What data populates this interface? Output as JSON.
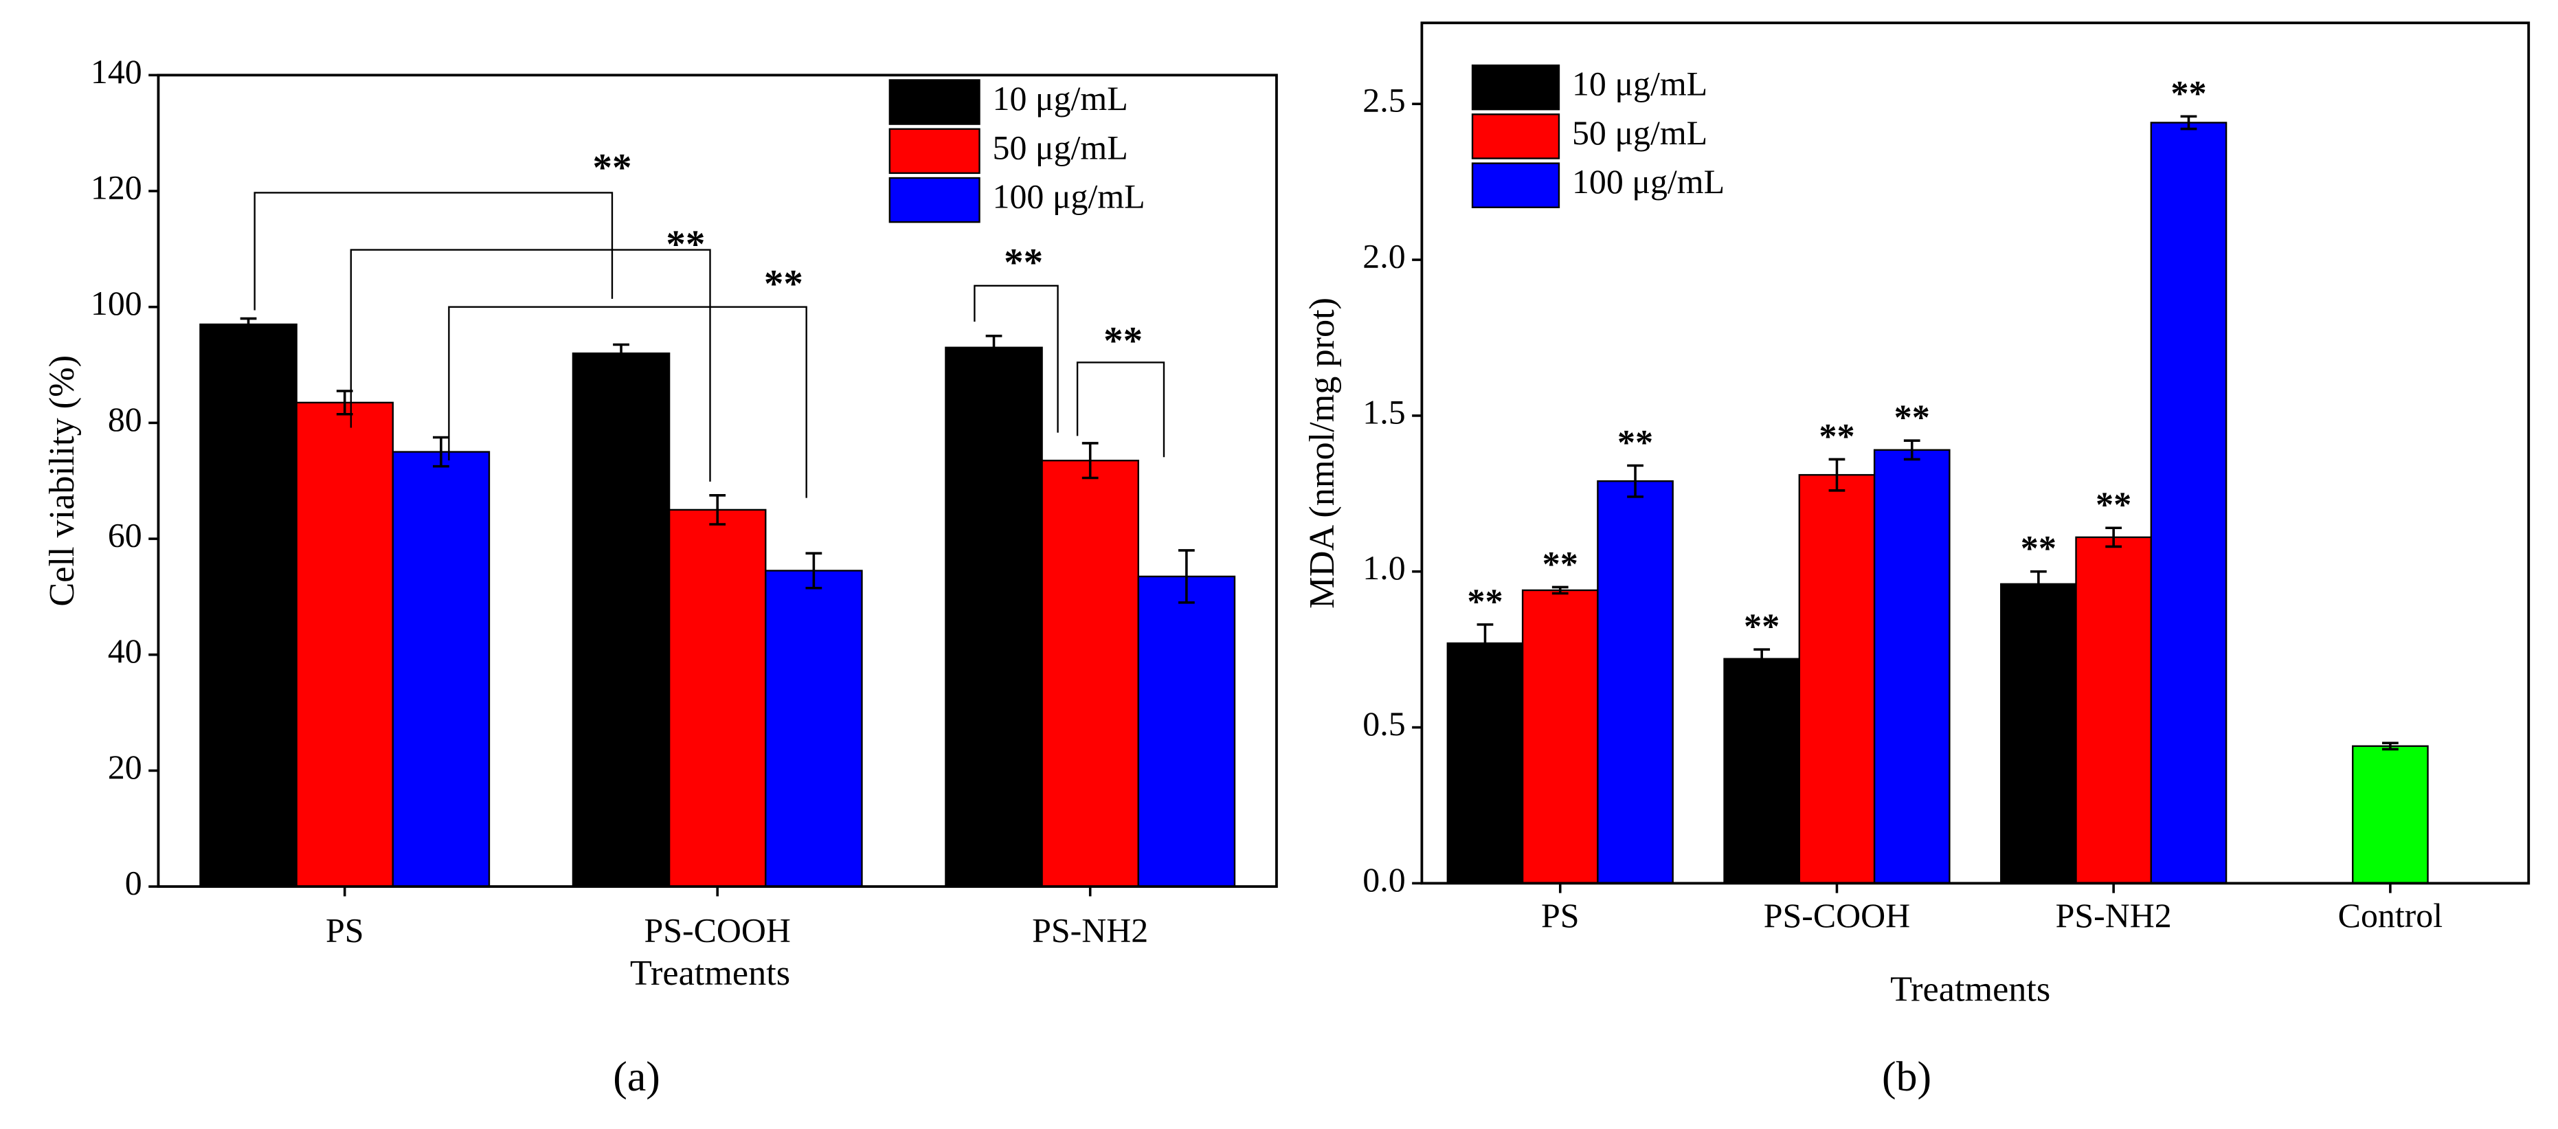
{
  "chart_data": [
    {
      "type": "bar",
      "panel_label": "(a)",
      "xlabel": "Treatments",
      "ylabel": "Cell viability (%)",
      "categories": [
        "PS",
        "PS-COOH",
        "PS-NH2"
      ],
      "series": [
        {
          "name": "10 μg/mL",
          "color": "#000000",
          "values": [
            97,
            92,
            93
          ],
          "errors": [
            1,
            1.5,
            2
          ]
        },
        {
          "name": "50 μg/mL",
          "color": "#ff0000",
          "values": [
            83.5,
            65,
            73.5
          ],
          "errors": [
            2,
            2.5,
            3
          ]
        },
        {
          "name": "100 μg/mL",
          "color": "#0000ff",
          "values": [
            75,
            54.5,
            53.5
          ],
          "errors": [
            2.5,
            3,
            4.5
          ]
        }
      ],
      "ylim": [
        0,
        140
      ],
      "yticks": [
        0,
        20,
        40,
        60,
        80,
        100,
        120,
        140
      ],
      "legend": "upper right",
      "annotations": [
        "**",
        "**",
        "**",
        "**",
        "**"
      ]
    },
    {
      "type": "bar",
      "panel_label": "(b)",
      "xlabel": "Treatments",
      "ylabel": "MDA (nmol/mg prot)",
      "categories": [
        "PS",
        "PS-COOH",
        "PS-NH2",
        "Control"
      ],
      "series": [
        {
          "name": "10 μg/mL",
          "color": "#000000",
          "values": [
            0.77,
            0.72,
            0.96,
            null
          ],
          "errors": [
            0.06,
            0.03,
            0.04,
            null
          ]
        },
        {
          "name": "50 μg/mL",
          "color": "#ff0000",
          "values": [
            0.94,
            1.31,
            1.11,
            null
          ],
          "errors": [
            0.01,
            0.05,
            0.03,
            null
          ]
        },
        {
          "name": "100 μg/mL",
          "color": "#0000ff",
          "values": [
            1.29,
            1.39,
            2.44,
            null
          ],
          "errors": [
            0.05,
            0.03,
            0.02,
            null
          ]
        },
        {
          "color": "#00ff00",
          "values": [
            null,
            null,
            null,
            0.44
          ],
          "errors": [
            null,
            null,
            null,
            0.01
          ]
        }
      ],
      "ylim": [
        0,
        2.76
      ],
      "yticks": [
        {
          "value": 0,
          "label": "0.0"
        },
        {
          "value": 0.5,
          "label": "0.5"
        },
        {
          "value": 1,
          "label": "1.0"
        },
        {
          "value": 1.5,
          "label": "1.5"
        },
        {
          "value": 2,
          "label": "2.0"
        },
        {
          "value": 2.5,
          "label": "2.5"
        }
      ],
      "legend": "upper left",
      "annotations": [
        "**",
        "**",
        "**",
        "**",
        "**",
        "**",
        "**",
        "**",
        "**"
      ]
    }
  ]
}
